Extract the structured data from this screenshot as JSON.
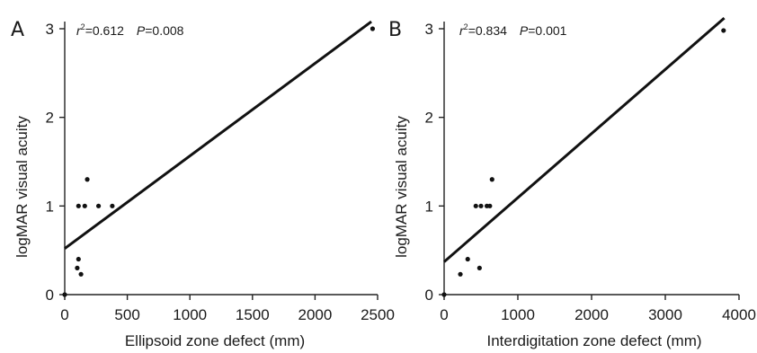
{
  "chart_data": [
    {
      "type": "scatter",
      "panel_label": "A",
      "xlabel": "Ellipsoid zone defect (mm)",
      "ylabel": "logMAR visual acuity",
      "xlim": [
        0,
        2500
      ],
      "ylim": [
        0,
        3
      ],
      "x_ticks": [
        "0",
        "500",
        "1000",
        "1500",
        "2000",
        "2500"
      ],
      "x_tick_values": [
        0,
        500,
        1000,
        1500,
        2000,
        2500
      ],
      "y_ticks": [
        "0",
        "1",
        "2",
        "3"
      ],
      "y_tick_values": [
        0,
        1,
        2,
        3
      ],
      "stats": {
        "r2_prefix": "r",
        "r2_sup": "2",
        "r2_value": "=0.612",
        "p_label": "P",
        "p_value": "=0.008"
      },
      "points": [
        {
          "x": 0,
          "y": 0
        },
        {
          "x": 100,
          "y": 0.3
        },
        {
          "x": 110,
          "y": 0.4
        },
        {
          "x": 130,
          "y": 0.23
        },
        {
          "x": 110,
          "y": 1.0
        },
        {
          "x": 160,
          "y": 1.0
        },
        {
          "x": 180,
          "y": 1.3
        },
        {
          "x": 270,
          "y": 1.0
        },
        {
          "x": 380,
          "y": 1.0
        },
        {
          "x": 2460,
          "y": 3.0
        }
      ],
      "regression": {
        "x": [
          0,
          2450
        ],
        "y": [
          0.52,
          3.08
        ]
      },
      "grid": false
    },
    {
      "type": "scatter",
      "panel_label": "B",
      "xlabel": "Interdigitation zone defect (mm)",
      "ylabel": "logMAR visual acuity",
      "xlim": [
        0,
        4000
      ],
      "ylim": [
        0,
        3
      ],
      "x_ticks": [
        "0",
        "1000",
        "2000",
        "3000",
        "4000"
      ],
      "x_tick_values": [
        0,
        1000,
        2000,
        3000,
        4000
      ],
      "y_ticks": [
        "0",
        "1",
        "2",
        "3"
      ],
      "y_tick_values": [
        0,
        1,
        2,
        3
      ],
      "stats": {
        "r2_prefix": "r",
        "r2_sup": "2",
        "r2_value": "=0.834",
        "p_label": "P",
        "p_value": "=0.001"
      },
      "points": [
        {
          "x": 0,
          "y": 0
        },
        {
          "x": 220,
          "y": 0.23
        },
        {
          "x": 320,
          "y": 0.4
        },
        {
          "x": 430,
          "y": 1.0
        },
        {
          "x": 480,
          "y": 0.3
        },
        {
          "x": 500,
          "y": 1.0
        },
        {
          "x": 580,
          "y": 1.0
        },
        {
          "x": 620,
          "y": 1.0
        },
        {
          "x": 650,
          "y": 1.3
        },
        {
          "x": 3790,
          "y": 2.98
        }
      ],
      "regression": {
        "x": [
          0,
          3800
        ],
        "y": [
          0.37,
          3.12
        ]
      },
      "grid": false
    }
  ]
}
